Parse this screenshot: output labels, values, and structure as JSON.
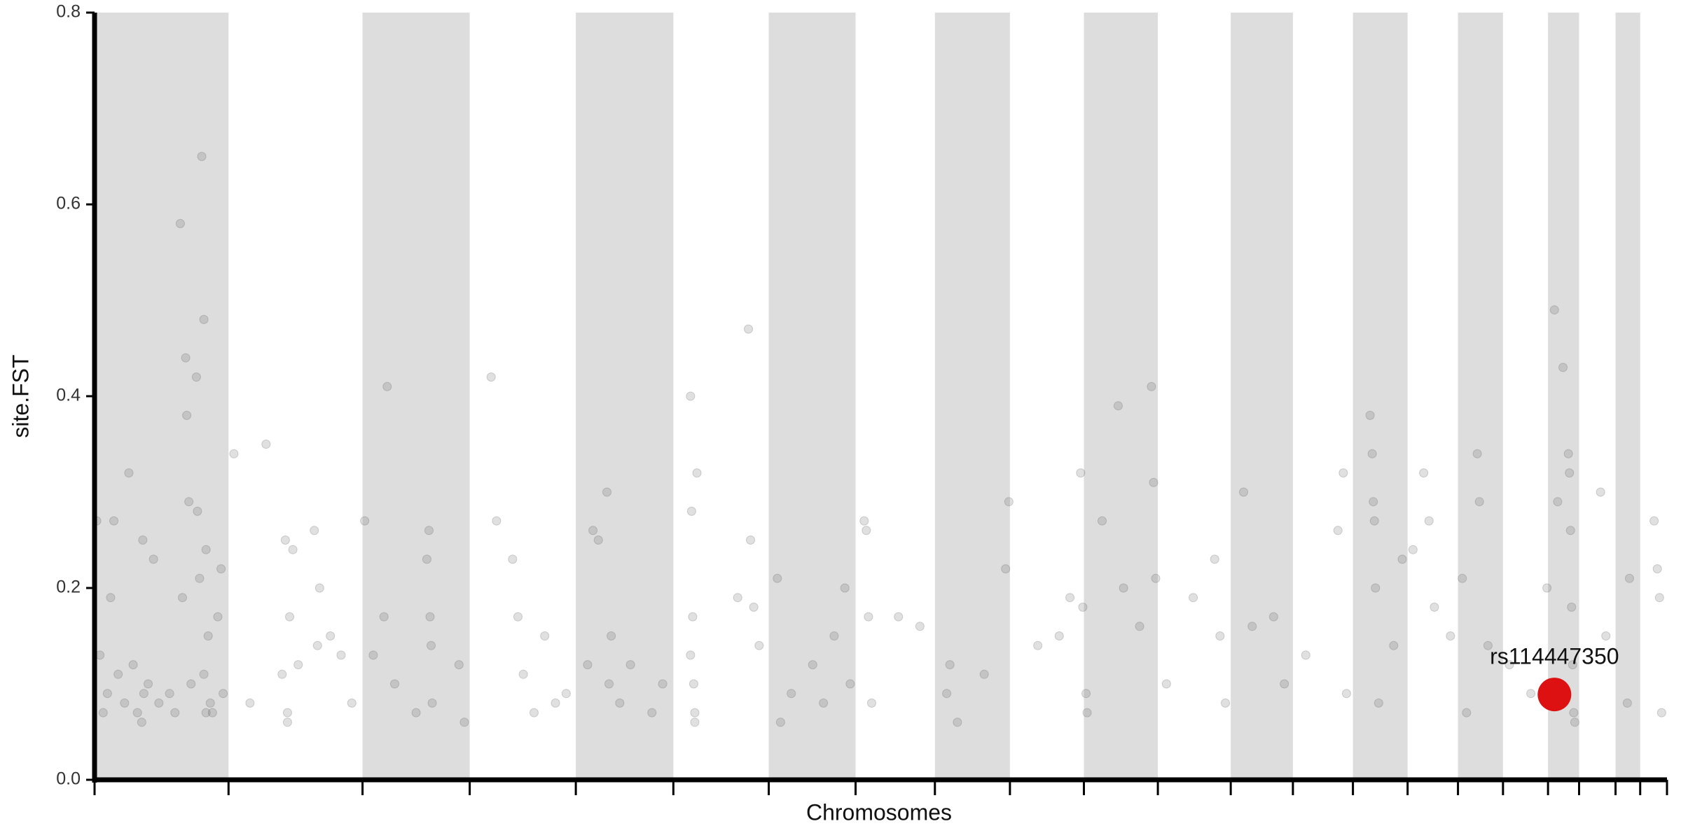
{
  "chart_data": {
    "type": "scatter",
    "xlabel": "Chromosomes",
    "ylabel": "site.FST",
    "xlim": [
      0,
      1467
    ],
    "ylim": [
      0,
      0.8
    ],
    "yticks": [
      {
        "value": 0,
        "label": "0.0"
      },
      0.2,
      0.4,
      0.6,
      0.8
    ],
    "xticks": [
      0,
      125,
      250,
      350,
      449,
      540,
      629,
      710,
      784,
      854,
      923,
      992,
      1060,
      1118,
      1174,
      1225,
      1272,
      1314,
      1356,
      1385,
      1419,
      1442,
      1467
    ],
    "bands": [
      [
        0,
        125
      ],
      [
        250,
        350
      ],
      [
        449,
        540
      ],
      [
        629,
        710
      ],
      [
        784,
        854
      ],
      [
        923,
        992
      ],
      [
        1060,
        1118
      ],
      [
        1174,
        1225
      ],
      [
        1272,
        1314
      ],
      [
        1356,
        1385
      ],
      [
        1419,
        1442
      ]
    ],
    "band_color": "#dddddd",
    "color": "#555555",
    "x": [
      2,
      5,
      8,
      12,
      15,
      18,
      22,
      28,
      32,
      36,
      40,
      45,
      50,
      55,
      60,
      70,
      75,
      80,
      82,
      85,
      86,
      88,
      90,
      95,
      96,
      98,
      100,
      102,
      104,
      106,
      108,
      110,
      115,
      118,
      120,
      104,
      102,
      44,
      46,
      130,
      145,
      160,
      175,
      178,
      180,
      182,
      185,
      190,
      205,
      208,
      210,
      220,
      230,
      240,
      180,
      252,
      260,
      270,
      273,
      280,
      300,
      310,
      312,
      313,
      314,
      315,
      340,
      345,
      370,
      375,
      390,
      395,
      400,
      410,
      420,
      430,
      440,
      460,
      465,
      470,
      478,
      480,
      482,
      490,
      500,
      520,
      530,
      556,
      557,
      558,
      559,
      560,
      562,
      560,
      556,
      600,
      610,
      612,
      615,
      620,
      637,
      640,
      650,
      670,
      680,
      690,
      700,
      705,
      718,
      720,
      722,
      725,
      750,
      770,
      795,
      798,
      805,
      830,
      850,
      853,
      880,
      900,
      910,
      920,
      922,
      925,
      926,
      940,
      955,
      960,
      975,
      986,
      988,
      990,
      1000,
      1025,
      1045,
      1050,
      1055,
      1072,
      1080,
      1100,
      1110,
      1130,
      1160,
      1165,
      1168,
      1190,
      1192,
      1193,
      1194,
      1195,
      1198,
      1212,
      1220,
      1230,
      1240,
      1245,
      1250,
      1265,
      1276,
      1280,
      1290,
      1292,
      1300,
      1320,
      1340,
      1355,
      1362,
      1365,
      1370,
      1375,
      1376,
      1377,
      1378,
      1379,
      1380,
      1381,
      1405,
      1410,
      1432,
      1430,
      1455,
      1458,
      1460,
      1462
    ],
    "values": [
      0.27,
      0.13,
      0.07,
      0.09,
      0.19,
      0.27,
      0.11,
      0.08,
      0.32,
      0.12,
      0.07,
      0.25,
      0.1,
      0.23,
      0.08,
      0.09,
      0.07,
      0.58,
      0.19,
      0.44,
      0.38,
      0.29,
      0.1,
      0.42,
      0.28,
      0.21,
      0.65,
      0.48,
      0.24,
      0.15,
      0.08,
      0.07,
      0.17,
      0.22,
      0.09,
      0.07,
      0.11,
      0.06,
      0.09,
      0.34,
      0.08,
      0.35,
      0.11,
      0.25,
      0.07,
      0.17,
      0.24,
      0.12,
      0.26,
      0.14,
      0.2,
      0.15,
      0.13,
      0.08,
      0.06,
      0.27,
      0.13,
      0.17,
      0.41,
      0.1,
      0.07,
      0.23,
      0.26,
      0.17,
      0.14,
      0.08,
      0.12,
      0.06,
      0.42,
      0.27,
      0.23,
      0.17,
      0.11,
      0.07,
      0.15,
      0.08,
      0.09,
      0.12,
      0.26,
      0.25,
      0.3,
      0.1,
      0.15,
      0.08,
      0.12,
      0.07,
      0.1,
      0.4,
      0.28,
      0.17,
      0.1,
      0.07,
      0.32,
      0.06,
      0.13,
      0.19,
      0.47,
      0.25,
      0.18,
      0.14,
      0.21,
      0.06,
      0.09,
      0.12,
      0.08,
      0.15,
      0.2,
      0.1,
      0.27,
      0.26,
      0.17,
      0.08,
      0.17,
      0.16,
      0.09,
      0.12,
      0.06,
      0.11,
      0.22,
      0.29,
      0.14,
      0.15,
      0.19,
      0.32,
      0.18,
      0.09,
      0.07,
      0.27,
      0.39,
      0.2,
      0.16,
      0.41,
      0.31,
      0.21,
      0.1,
      0.19,
      0.23,
      0.15,
      0.08,
      0.3,
      0.16,
      0.17,
      0.1,
      0.13,
      0.26,
      0.32,
      0.09,
      0.38,
      0.34,
      0.29,
      0.27,
      0.2,
      0.08,
      0.14,
      0.23,
      0.24,
      0.32,
      0.27,
      0.18,
      0.15,
      0.21,
      0.07,
      0.34,
      0.29,
      0.14,
      0.12,
      0.09,
      0.2,
      0.49,
      0.29,
      0.43,
      0.34,
      0.32,
      0.26,
      0.18,
      0.12,
      0.07,
      0.06,
      0.3,
      0.15,
      0.21,
      0.08,
      0.27,
      0.22,
      0.19,
      0.07
    ],
    "highlight": {
      "label": "rs114447350",
      "x": 1362,
      "value": 0.089,
      "color": "#dd1111"
    }
  }
}
